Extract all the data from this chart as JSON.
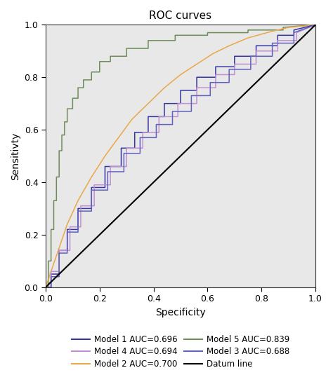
{
  "title": "ROC curves",
  "xlabel": "Specificity",
  "ylabel": "Sensitivty",
  "background_color": "#e8e8e8",
  "xlim": [
    0.0,
    1.0
  ],
  "ylim": [
    0.0,
    1.0
  ],
  "xticks": [
    0.0,
    0.2,
    0.4,
    0.6,
    0.8,
    1.0
  ],
  "yticks": [
    0.0,
    0.2,
    0.4,
    0.6,
    0.8,
    1.0
  ],
  "model1_color": "#3535a0",
  "model2_color": "#e8a84a",
  "model3_color": "#6060c0",
  "model4_color": "#c090d0",
  "model5_color": "#6e8c5a",
  "datum_color": "#000000",
  "model1_label": "Model 1 AUC=0.696",
  "model2_label": "Model 2 AUC=0.700",
  "model3_label": "Model 3 AUC=0.688",
  "model4_label": "Model 4 AUC=0.694",
  "model5_label": "Model 5 AUC=0.839",
  "datum_label": "Datum line",
  "linewidth": 1.1,
  "figsize": [
    4.74,
    5.55
  ],
  "dpi": 100,
  "m5_fpr": [
    0.0,
    0.01,
    0.01,
    0.02,
    0.02,
    0.03,
    0.03,
    0.04,
    0.04,
    0.05,
    0.05,
    0.06,
    0.06,
    0.07,
    0.07,
    0.08,
    0.08,
    0.1,
    0.1,
    0.12,
    0.12,
    0.14,
    0.14,
    0.17,
    0.17,
    0.2,
    0.2,
    0.24,
    0.24,
    0.3,
    0.3,
    0.38,
    0.38,
    0.48,
    0.48,
    0.6,
    0.6,
    0.75,
    0.75,
    0.88,
    0.88,
    1.0
  ],
  "m5_tpr": [
    0.0,
    0.0,
    0.1,
    0.1,
    0.22,
    0.22,
    0.33,
    0.33,
    0.42,
    0.42,
    0.52,
    0.52,
    0.58,
    0.58,
    0.63,
    0.63,
    0.68,
    0.68,
    0.72,
    0.72,
    0.76,
    0.76,
    0.79,
    0.79,
    0.82,
    0.82,
    0.86,
    0.86,
    0.88,
    0.88,
    0.91,
    0.91,
    0.94,
    0.94,
    0.96,
    0.96,
    0.97,
    0.97,
    0.98,
    0.98,
    0.99,
    1.0
  ],
  "m1_fpr": [
    0.0,
    0.02,
    0.02,
    0.05,
    0.05,
    0.08,
    0.08,
    0.12,
    0.12,
    0.17,
    0.17,
    0.22,
    0.22,
    0.28,
    0.28,
    0.33,
    0.33,
    0.38,
    0.38,
    0.44,
    0.44,
    0.5,
    0.5,
    0.56,
    0.56,
    0.63,
    0.63,
    0.7,
    0.7,
    0.78,
    0.78,
    0.86,
    0.86,
    0.92,
    0.92,
    1.0
  ],
  "m1_tpr": [
    0.0,
    0.0,
    0.05,
    0.05,
    0.14,
    0.14,
    0.22,
    0.22,
    0.3,
    0.3,
    0.38,
    0.38,
    0.46,
    0.46,
    0.53,
    0.53,
    0.59,
    0.59,
    0.65,
    0.65,
    0.7,
    0.7,
    0.75,
    0.75,
    0.8,
    0.8,
    0.84,
    0.84,
    0.88,
    0.88,
    0.92,
    0.92,
    0.96,
    0.96,
    0.98,
    1.0
  ],
  "m2_fpr": [
    0.0,
    0.02,
    0.05,
    0.08,
    0.12,
    0.17,
    0.22,
    0.27,
    0.32,
    0.38,
    0.44,
    0.5,
    0.56,
    0.62,
    0.68,
    0.75,
    0.82,
    0.9,
    1.0
  ],
  "m2_tpr": [
    0.0,
    0.06,
    0.15,
    0.24,
    0.33,
    0.42,
    0.5,
    0.57,
    0.64,
    0.7,
    0.76,
    0.81,
    0.85,
    0.89,
    0.92,
    0.95,
    0.97,
    0.99,
    1.0
  ],
  "m3_fpr": [
    0.0,
    0.02,
    0.02,
    0.05,
    0.05,
    0.08,
    0.08,
    0.12,
    0.12,
    0.17,
    0.17,
    0.23,
    0.23,
    0.29,
    0.29,
    0.35,
    0.35,
    0.41,
    0.41,
    0.47,
    0.47,
    0.54,
    0.54,
    0.61,
    0.61,
    0.68,
    0.68,
    0.76,
    0.76,
    0.84,
    0.84,
    0.92,
    0.92,
    1.0
  ],
  "m3_tpr": [
    0.0,
    0.0,
    0.04,
    0.04,
    0.13,
    0.13,
    0.21,
    0.21,
    0.29,
    0.29,
    0.37,
    0.37,
    0.44,
    0.44,
    0.51,
    0.51,
    0.57,
    0.57,
    0.62,
    0.62,
    0.67,
    0.67,
    0.73,
    0.73,
    0.78,
    0.78,
    0.83,
    0.83,
    0.88,
    0.88,
    0.93,
    0.93,
    0.97,
    1.0
  ],
  "m4_fpr": [
    0.0,
    0.02,
    0.02,
    0.05,
    0.05,
    0.09,
    0.09,
    0.13,
    0.13,
    0.18,
    0.18,
    0.24,
    0.24,
    0.3,
    0.3,
    0.36,
    0.36,
    0.42,
    0.42,
    0.49,
    0.49,
    0.56,
    0.56,
    0.63,
    0.63,
    0.7,
    0.7,
    0.78,
    0.78,
    0.86,
    0.86,
    0.93,
    0.93,
    1.0
  ],
  "m4_tpr": [
    0.0,
    0.0,
    0.06,
    0.06,
    0.14,
    0.14,
    0.23,
    0.23,
    0.31,
    0.31,
    0.39,
    0.39,
    0.46,
    0.46,
    0.53,
    0.53,
    0.59,
    0.59,
    0.65,
    0.65,
    0.7,
    0.7,
    0.76,
    0.76,
    0.81,
    0.81,
    0.85,
    0.85,
    0.9,
    0.9,
    0.94,
    0.94,
    0.97,
    1.0
  ]
}
